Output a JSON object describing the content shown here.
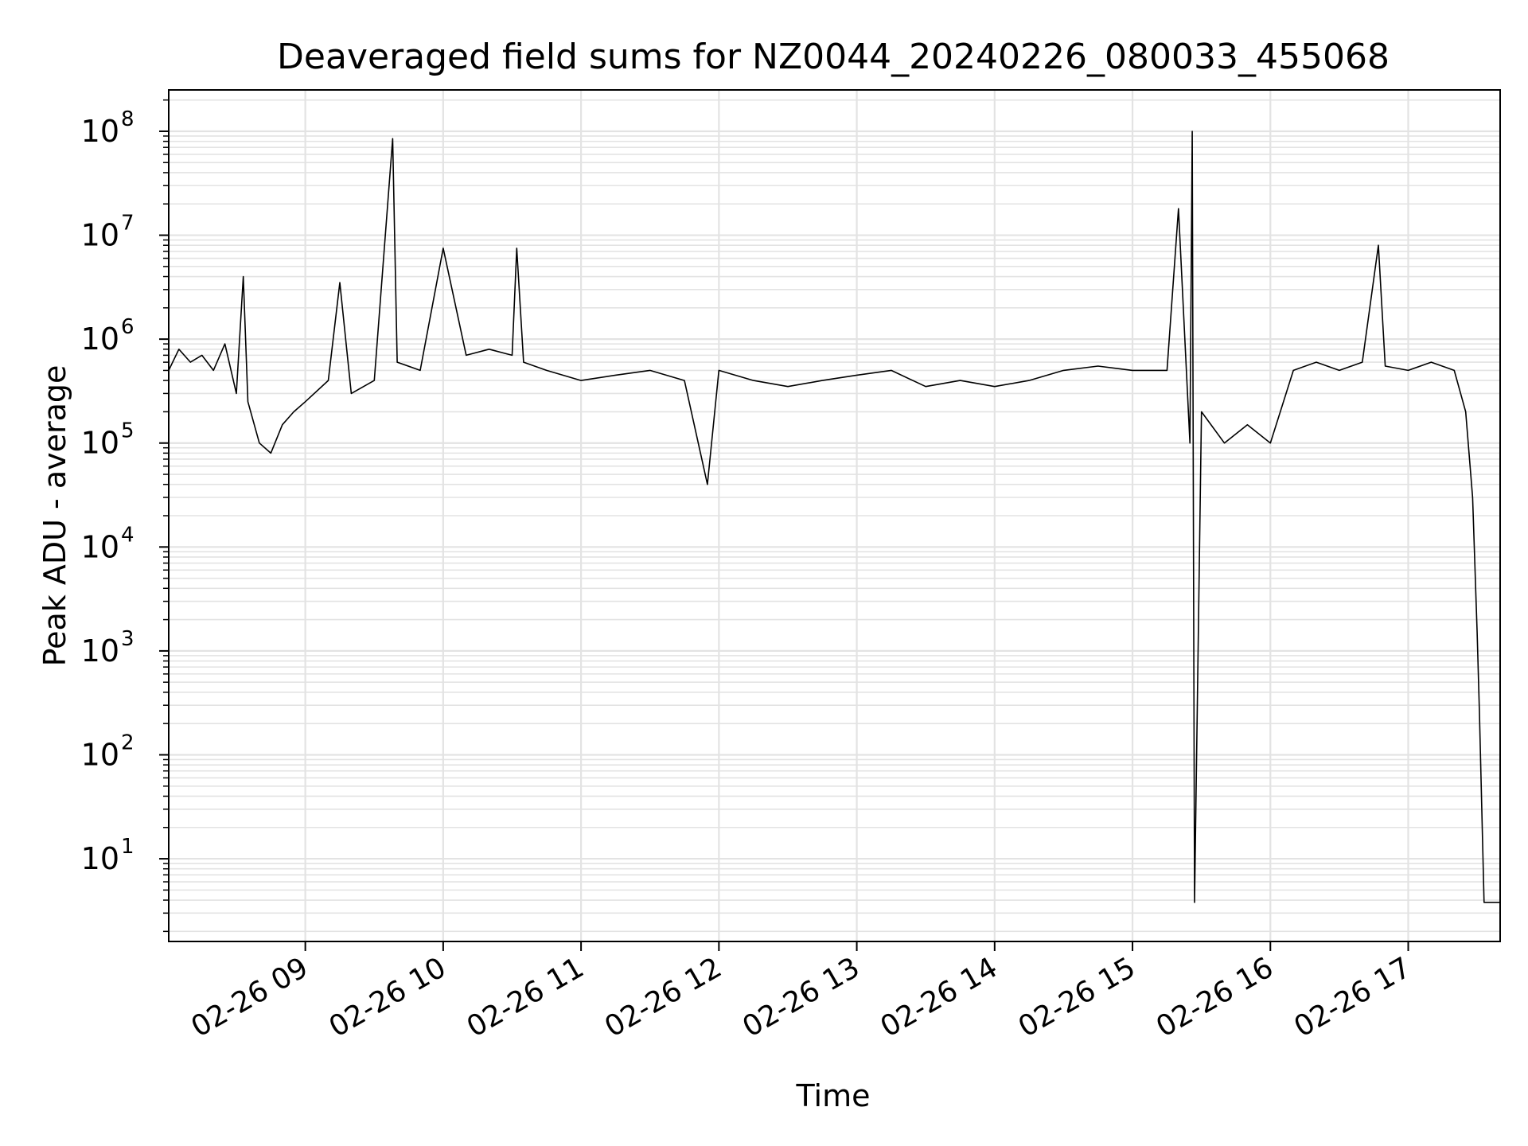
{
  "chart_data": {
    "type": "line",
    "title": "Deaveraged field sums for NZ0044_20240226_080033_455068",
    "xlabel": "Time",
    "ylabel": "Peak ADU - average",
    "y_scale": "log",
    "ylim": [
      1.6,
      250000000
    ],
    "xlim": [
      "2024-02-26 08:00:33",
      "2024-02-26 17:40"
    ],
    "grid": true,
    "line_color": "#000000",
    "grid_color": "#e3e3e3",
    "x_ticks": [
      "02-26 09",
      "02-26 10",
      "02-26 11",
      "02-26 12",
      "02-26 13",
      "02-26 14",
      "02-26 15",
      "02-26 16",
      "02-26 17"
    ],
    "x_tick_times": [
      "2024-02-26 09:00",
      "2024-02-26 10:00",
      "2024-02-26 11:00",
      "2024-02-26 12:00",
      "2024-02-26 13:00",
      "2024-02-26 14:00",
      "2024-02-26 15:00",
      "2024-02-26 16:00",
      "2024-02-26 17:00"
    ],
    "y_ticks": [
      {
        "value": 10,
        "base": "10",
        "exp": "1"
      },
      {
        "value": 100,
        "base": "10",
        "exp": "2"
      },
      {
        "value": 1000,
        "base": "10",
        "exp": "3"
      },
      {
        "value": 10000,
        "base": "10",
        "exp": "4"
      },
      {
        "value": 100000,
        "base": "10",
        "exp": "5"
      },
      {
        "value": 1000000,
        "base": "10",
        "exp": "6"
      },
      {
        "value": 10000000,
        "base": "10",
        "exp": "7"
      },
      {
        "value": 100000000,
        "base": "10",
        "exp": "8"
      }
    ],
    "series": [
      {
        "x": [
          "2024-02-26 08:00:33",
          "2024-02-26 08:05",
          "2024-02-26 08:10",
          "2024-02-26 08:15",
          "2024-02-26 08:20",
          "2024-02-26 08:25",
          "2024-02-26 08:30",
          "2024-02-26 08:33",
          "2024-02-26 08:35",
          "2024-02-26 08:40",
          "2024-02-26 08:45",
          "2024-02-26 08:50",
          "2024-02-26 08:55",
          "2024-02-26 09:00",
          "2024-02-26 09:10",
          "2024-02-26 09:15",
          "2024-02-26 09:20",
          "2024-02-26 09:30",
          "2024-02-26 09:38",
          "2024-02-26 09:40",
          "2024-02-26 09:50",
          "2024-02-26 10:00",
          "2024-02-26 10:10",
          "2024-02-26 10:20",
          "2024-02-26 10:30",
          "2024-02-26 10:32",
          "2024-02-26 10:35",
          "2024-02-26 10:45",
          "2024-02-26 11:00",
          "2024-02-26 11:15",
          "2024-02-26 11:30",
          "2024-02-26 11:45",
          "2024-02-26 11:55",
          "2024-02-26 12:00",
          "2024-02-26 12:15",
          "2024-02-26 12:30",
          "2024-02-26 12:45",
          "2024-02-26 13:00",
          "2024-02-26 13:15",
          "2024-02-26 13:30",
          "2024-02-26 13:45",
          "2024-02-26 14:00",
          "2024-02-26 14:15",
          "2024-02-26 14:30",
          "2024-02-26 14:45",
          "2024-02-26 15:00",
          "2024-02-26 15:15",
          "2024-02-26 15:20",
          "2024-02-26 15:25",
          "2024-02-26 15:26",
          "2024-02-26 15:27",
          "2024-02-26 15:30",
          "2024-02-26 15:40",
          "2024-02-26 15:50",
          "2024-02-26 16:00",
          "2024-02-26 16:10",
          "2024-02-26 16:20",
          "2024-02-26 16:30",
          "2024-02-26 16:40",
          "2024-02-26 16:47",
          "2024-02-26 16:50",
          "2024-02-26 17:00",
          "2024-02-26 17:10",
          "2024-02-26 17:20",
          "2024-02-26 17:25",
          "2024-02-26 17:28",
          "2024-02-26 17:30",
          "2024-02-26 17:31",
          "2024-02-26 17:33",
          "2024-02-26 17:40"
        ],
        "values": [
          500000,
          800000,
          600000,
          700000,
          500000,
          900000,
          300000,
          4000000,
          250000,
          100000,
          80000,
          150000,
          200000,
          250000,
          400000,
          3500000,
          300000,
          400000,
          85000000,
          600000,
          500000,
          7500000,
          700000,
          800000,
          700000,
          7500000,
          600000,
          500000,
          400000,
          450000,
          500000,
          400000,
          40000,
          500000,
          400000,
          350000,
          400000,
          450000,
          500000,
          350000,
          400000,
          350000,
          400000,
          500000,
          550000,
          500000,
          500000,
          18000000,
          100000,
          100000000,
          3.8,
          200000,
          100000,
          150000,
          100000,
          500000,
          600000,
          500000,
          600000,
          8000000,
          550000,
          500000,
          600000,
          500000,
          200000,
          30000,
          1500,
          250,
          3.8,
          3.8
        ]
      }
    ]
  }
}
